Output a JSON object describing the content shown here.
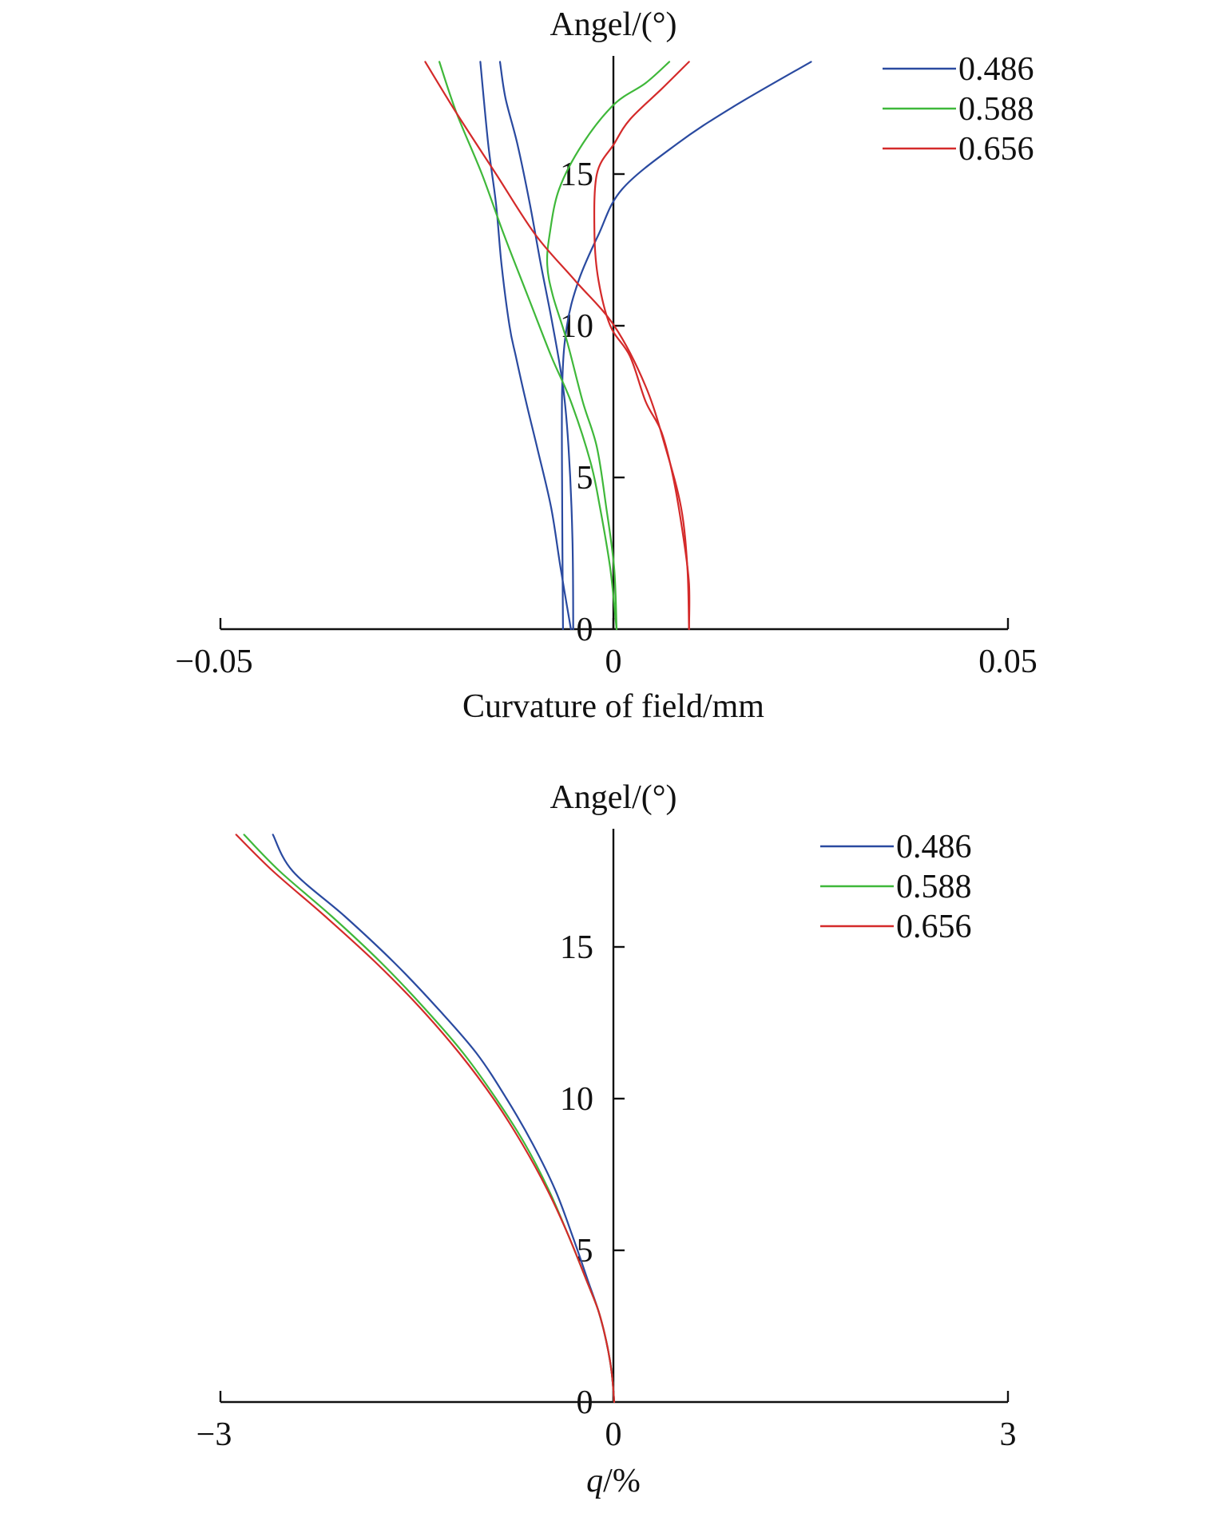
{
  "colors": {
    "blue": "#2a4aa0",
    "green": "#3fb83a",
    "red": "#d42a2a",
    "axis": "#111111"
  },
  "chart_data": [
    {
      "type": "line",
      "xlabel": "Curvature of field/mm",
      "ylabel": "Angel/(°)",
      "xlim": [
        -0.05,
        0.05
      ],
      "ylim": [
        0,
        18.7
      ],
      "x_ticks": [
        -0.05,
        0,
        0.05
      ],
      "x_tick_labels": [
        "−0.05",
        "0",
        "0.05"
      ],
      "y_ticks": [
        0,
        5,
        10,
        15
      ],
      "y_tick_labels": [
        "0",
        "5",
        "10",
        "15"
      ],
      "legend_position": "top-right",
      "grid": false,
      "series": [
        {
          "name": "0.486",
          "color": "#2a4aa0",
          "points": [
            [
              -0.0052,
              0
            ],
            [
              -0.0053,
              3
            ],
            [
              -0.0058,
              6
            ],
            [
              -0.0065,
              8
            ],
            [
              -0.0078,
              10
            ],
            [
              -0.0093,
              12
            ],
            [
              -0.0107,
              14
            ],
            [
              -0.0123,
              16
            ],
            [
              -0.0138,
              17.5
            ],
            [
              -0.0145,
              18.7
            ]
          ]
        },
        {
          "name": "0.486",
          "color": "#2a4aa0",
          "points": [
            [
              -0.0055,
              0
            ],
            [
              -0.0068,
              2
            ],
            [
              -0.008,
              4
            ],
            [
              -0.0098,
              6
            ],
            [
              -0.0112,
              7.5
            ],
            [
              -0.0125,
              9
            ],
            [
              -0.0133,
              10
            ],
            [
              -0.0143,
              12
            ],
            [
              -0.015,
              14
            ],
            [
              -0.016,
              16
            ],
            [
              -0.017,
              18.7
            ]
          ]
        },
        {
          "name": "0.486",
          "color": "#2a4aa0",
          "points": [
            [
              -0.0065,
              0
            ],
            [
              -0.0066,
              4
            ],
            [
              -0.0066,
              8
            ],
            [
              -0.006,
              10
            ],
            [
              -0.0045,
              11.5
            ],
            [
              -0.002,
              13
            ],
            [
              0.001,
              14.5
            ],
            [
              0.008,
              16
            ],
            [
              0.015,
              17.2
            ],
            [
              0.025,
              18.7
            ]
          ]
        },
        {
          "name": "0.588",
          "color": "#3fb83a",
          "points": [
            [
              0.0003,
              0
            ],
            [
              -0.0005,
              2
            ],
            [
              -0.0018,
              4
            ],
            [
              -0.003,
              5.5
            ],
            [
              -0.0055,
              7.5
            ],
            [
              -0.008,
              9
            ],
            [
              -0.011,
              11
            ],
            [
              -0.014,
              13
            ],
            [
              -0.0168,
              15
            ],
            [
              -0.02,
              17
            ],
            [
              -0.0222,
              18.7
            ]
          ]
        },
        {
          "name": "0.588",
          "color": "#3fb83a",
          "points": [
            [
              0.0003,
              0
            ],
            [
              0.0,
              2
            ],
            [
              -0.001,
              4
            ],
            [
              -0.0022,
              6
            ],
            [
              -0.004,
              7.5
            ],
            [
              -0.006,
              9.5
            ],
            [
              -0.0078,
              11
            ],
            [
              -0.0085,
              12
            ],
            [
              -0.0082,
              13
            ],
            [
              -0.007,
              14.5
            ],
            [
              -0.004,
              16
            ],
            [
              0.0,
              17.3
            ],
            [
              0.004,
              18
            ],
            [
              0.007,
              18.7
            ]
          ]
        },
        {
          "name": "0.656",
          "color": "#d42a2a",
          "points": [
            [
              0.0095,
              0
            ],
            [
              0.0093,
              2
            ],
            [
              0.0085,
              4
            ],
            [
              0.0065,
              6
            ],
            [
              0.004,
              8
            ],
            [
              0.0,
              10
            ],
            [
              -0.005,
              11.5
            ],
            [
              -0.01,
              13
            ],
            [
              -0.015,
              15
            ],
            [
              -0.02,
              17
            ],
            [
              -0.024,
              18.7
            ]
          ]
        },
        {
          "name": "0.656",
          "color": "#d42a2a",
          "points": [
            [
              0.0095,
              0
            ],
            [
              0.0095,
              1.5
            ],
            [
              0.0088,
              3
            ],
            [
              0.0075,
              5
            ],
            [
              0.006,
              6.5
            ],
            [
              0.004,
              7.5
            ],
            [
              0.002,
              9
            ],
            [
              -0.0005,
              10
            ],
            [
              -0.002,
              11.5
            ],
            [
              -0.0025,
              13
            ],
            [
              -0.0022,
              15
            ],
            [
              0.0,
              16
            ],
            [
              0.002,
              16.8
            ],
            [
              0.006,
              17.8
            ],
            [
              0.0095,
              18.7
            ]
          ]
        }
      ],
      "legend": [
        {
          "label": "0.486",
          "color": "#2a4aa0"
        },
        {
          "label": "0.588",
          "color": "#3fb83a"
        },
        {
          "label": "0.656",
          "color": "#d42a2a"
        }
      ]
    },
    {
      "type": "line",
      "xlabel_italic": "q",
      "xlabel_rest": "/%",
      "ylabel": "Angel/(°)",
      "xlim": [
        -3,
        3
      ],
      "ylim": [
        0,
        18.7
      ],
      "x_ticks": [
        -3,
        0,
        3
      ],
      "x_tick_labels": [
        "−3",
        "0",
        "3"
      ],
      "y_ticks": [
        0,
        5,
        10,
        15
      ],
      "y_tick_labels": [
        "0",
        "5",
        "10",
        "15"
      ],
      "legend_position": "top-right",
      "grid": false,
      "series": [
        {
          "name": "0.486",
          "color": "#2a4aa0",
          "points": [
            [
              0,
              0
            ],
            [
              -0.02,
              1
            ],
            [
              -0.06,
              2
            ],
            [
              -0.12,
              3
            ],
            [
              -0.2,
              4
            ],
            [
              -0.32,
              5.5
            ],
            [
              -0.45,
              7
            ],
            [
              -0.62,
              8.5
            ],
            [
              -0.82,
              10
            ],
            [
              -1.05,
              11.5
            ],
            [
              -1.35,
              13
            ],
            [
              -1.68,
              14.5
            ],
            [
              -2.05,
              16
            ],
            [
              -2.45,
              17.5
            ],
            [
              -2.6,
              18.7
            ]
          ]
        },
        {
          "name": "0.588",
          "color": "#3fb83a",
          "points": [
            [
              0,
              0
            ],
            [
              -0.02,
              1
            ],
            [
              -0.06,
              2
            ],
            [
              -0.12,
              3
            ],
            [
              -0.21,
              4
            ],
            [
              -0.35,
              5.5
            ],
            [
              -0.5,
              7
            ],
            [
              -0.68,
              8.5
            ],
            [
              -0.9,
              10
            ],
            [
              -1.15,
              11.5
            ],
            [
              -1.45,
              13
            ],
            [
              -1.78,
              14.5
            ],
            [
              -2.15,
              16
            ],
            [
              -2.55,
              17.5
            ],
            [
              -2.82,
              18.7
            ]
          ]
        },
        {
          "name": "0.656",
          "color": "#d42a2a",
          "points": [
            [
              0,
              0
            ],
            [
              -0.02,
              1
            ],
            [
              -0.06,
              2
            ],
            [
              -0.12,
              3
            ],
            [
              -0.21,
              4
            ],
            [
              -0.35,
              5.5
            ],
            [
              -0.51,
              7
            ],
            [
              -0.7,
              8.5
            ],
            [
              -0.92,
              10
            ],
            [
              -1.18,
              11.5
            ],
            [
              -1.48,
              13
            ],
            [
              -1.82,
              14.5
            ],
            [
              -2.2,
              16
            ],
            [
              -2.6,
              17.5
            ],
            [
              -2.88,
              18.7
            ]
          ]
        }
      ],
      "legend": [
        {
          "label": "0.486",
          "color": "#2a4aa0"
        },
        {
          "label": "0.588",
          "color": "#3fb83a"
        },
        {
          "label": "0.656",
          "color": "#d42a2a"
        }
      ]
    }
  ]
}
